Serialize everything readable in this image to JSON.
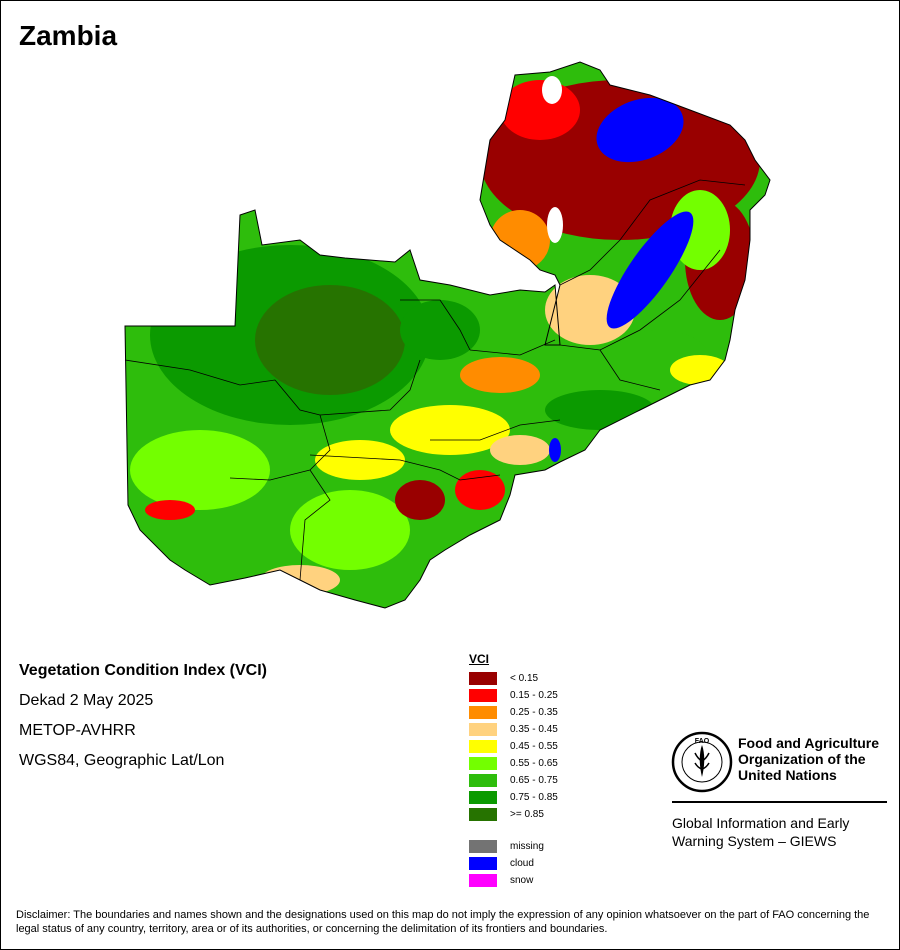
{
  "map": {
    "title": "Zambia",
    "theme_colors": {
      "very_poor": "#990000",
      "good": "#2ebd0c",
      "cloud": "#0000ff",
      "background": "#ffffff"
    }
  },
  "info": {
    "index_name": "Vegetation Condition Index (VCI)",
    "period": "Dekad 2 May 2025",
    "sensor": "METOP-AVHRR",
    "projection": "WGS84, Geographic Lat/Lon"
  },
  "legend": {
    "title": "VCI",
    "classes": [
      {
        "label": "< 0.15",
        "color": "#990000"
      },
      {
        "label": "0.15 - 0.25",
        "color": "#ff0000"
      },
      {
        "label": "0.25 - 0.35",
        "color": "#ff8c00"
      },
      {
        "label": "0.35 - 0.45",
        "color": "#ffd27f"
      },
      {
        "label": "0.45 - 0.55",
        "color": "#ffff00"
      },
      {
        "label": "0.55 - 0.65",
        "color": "#73ff00"
      },
      {
        "label": "0.65 - 0.75",
        "color": "#2ebd0c"
      },
      {
        "label": "0.75 - 0.85",
        "color": "#0b9a00"
      },
      {
        "label": ">= 0.85",
        "color": "#267300"
      }
    ],
    "other": [
      {
        "label": "missing",
        "color": "#737373"
      },
      {
        "label": "cloud",
        "color": "#0000ff"
      },
      {
        "label": "snow",
        "color": "#ff00ff"
      }
    ]
  },
  "organization": {
    "logo_text": "FAO",
    "name_lines": [
      "Food and Agriculture",
      "Organization of the",
      "United Nations"
    ],
    "giews_lines": [
      "Global Information and Early",
      "Warning System – GIEWS"
    ]
  },
  "disclaimer": "Disclaimer: The boundaries and names shown and the designations used on this map do not imply the expression of any opinion whatsoever on the part of FAO concerning the legal status of any country, territory, area or of its authorities, or concerning the delimitation of its frontiers and boundaries."
}
